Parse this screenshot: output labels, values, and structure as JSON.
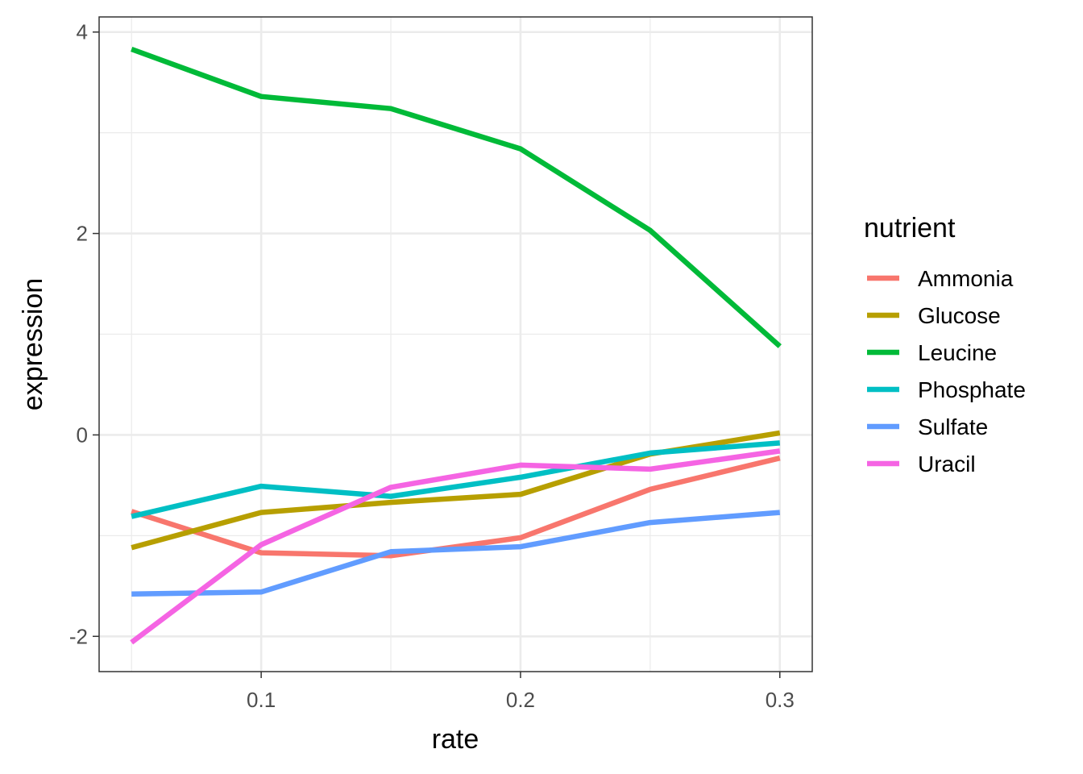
{
  "chart_data": {
    "type": "line",
    "xlabel": "rate",
    "ylabel": "expression",
    "xlim": [
      0.0375,
      0.3125
    ],
    "ylim": [
      -2.35,
      4.15
    ],
    "x_ticks": [
      0.1,
      0.2,
      0.3
    ],
    "x_tick_labels": [
      "0.1",
      "0.2",
      "0.3"
    ],
    "x_minor_ticks": [
      0.05,
      0.15,
      0.25
    ],
    "y_ticks": [
      -2,
      0,
      2,
      4
    ],
    "y_tick_labels": [
      "-2",
      "0",
      "2",
      "4"
    ],
    "y_minor_ticks": [
      -1,
      1,
      3
    ],
    "grid": true,
    "legend": {
      "title": "nutrient",
      "placement": "right"
    },
    "x": [
      0.05,
      0.1,
      0.15,
      0.2,
      0.25,
      0.3
    ],
    "series": [
      {
        "name": "Ammonia",
        "color": "#F8766D",
        "values": [
          -0.76,
          -1.17,
          -1.2,
          -1.02,
          -0.54,
          -0.23
        ]
      },
      {
        "name": "Glucose",
        "color": "#B79F00",
        "values": [
          -1.12,
          -0.77,
          -0.67,
          -0.59,
          -0.19,
          0.02
        ]
      },
      {
        "name": "Leucine",
        "color": "#00BA38",
        "values": [
          3.83,
          3.36,
          3.24,
          2.84,
          2.03,
          0.88
        ]
      },
      {
        "name": "Phosphate",
        "color": "#00BFC4",
        "values": [
          -0.81,
          -0.51,
          -0.61,
          -0.42,
          -0.18,
          -0.08
        ]
      },
      {
        "name": "Sulfate",
        "color": "#619CFF",
        "values": [
          -1.58,
          -1.56,
          -1.16,
          -1.11,
          -0.87,
          -0.77
        ]
      },
      {
        "name": "Uracil",
        "color": "#F564E3",
        "values": [
          -2.06,
          -1.09,
          -0.52,
          -0.3,
          -0.34,
          -0.16
        ]
      }
    ]
  }
}
